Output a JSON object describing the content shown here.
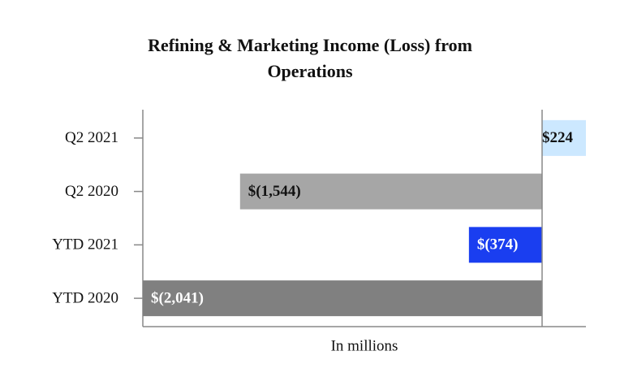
{
  "chart_data": {
    "type": "hbar",
    "title": "Refining & Marketing Income (Loss) from Operations",
    "x_label": "In millions",
    "categories": [
      "Q2 2021",
      "Q2 2020",
      "YTD 2021",
      "YTD 2020"
    ],
    "values": [
      224,
      -1544,
      -374,
      -2041
    ],
    "value_labels": [
      "$224",
      "$(1,544)",
      "$(374)",
      "$(2,041)"
    ],
    "colors": [
      "#cce8ff",
      "#a6a6a6",
      "#1a3ef0",
      "#808080"
    ],
    "xlim": [
      -2041,
      224
    ]
  }
}
